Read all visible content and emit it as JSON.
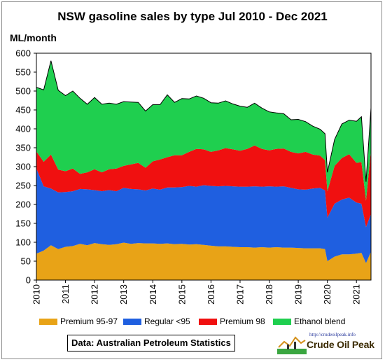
{
  "chart_data": {
    "type": "area",
    "stacked": true,
    "title": "NSW gasoline sales by type Jul 2010 - Dec 2021",
    "ylabel": "ML/month",
    "xlabel": "",
    "ylim": [
      0,
      600
    ],
    "yticks": [
      0,
      50,
      100,
      150,
      200,
      250,
      300,
      350,
      400,
      450,
      500,
      550,
      600
    ],
    "xlim": [
      2010,
      2021.5
    ],
    "xticks": [
      "2010",
      "2011",
      "2012",
      "2013",
      "2014",
      "2015",
      "2016",
      "2017",
      "2018",
      "2019",
      "2020",
      "2021"
    ],
    "grid": false,
    "legend_position": "bottom",
    "x": [
      2010.0,
      2010.25,
      2010.5,
      2010.75,
      2011.0,
      2011.25,
      2011.5,
      2011.75,
      2012.0,
      2012.25,
      2012.5,
      2012.75,
      2013.0,
      2013.25,
      2013.5,
      2013.75,
      2014.0,
      2014.25,
      2014.5,
      2014.75,
      2015.0,
      2015.25,
      2015.5,
      2015.75,
      2016.0,
      2016.25,
      2016.5,
      2016.75,
      2017.0,
      2017.25,
      2017.5,
      2017.75,
      2018.0,
      2018.25,
      2018.5,
      2018.75,
      2019.0,
      2019.25,
      2019.5,
      2019.75,
      2019.92,
      2020.0,
      2020.25,
      2020.5,
      2020.75,
      2021.0,
      2021.17,
      2021.33,
      2021.5
    ],
    "series": [
      {
        "name": "Premium 95-97",
        "color": "#e8a317",
        "values": [
          70,
          78,
          92,
          82,
          88,
          90,
          96,
          92,
          98,
          95,
          93,
          95,
          99,
          96,
          98,
          97,
          97,
          96,
          97,
          95,
          96,
          94,
          95,
          93,
          91,
          89,
          89,
          88,
          87,
          87,
          86,
          87,
          86,
          87,
          86,
          86,
          85,
          84,
          84,
          84,
          82,
          50,
          62,
          68,
          68,
          70,
          72,
          45,
          75
        ]
      },
      {
        "name": "Regular <95",
        "color": "#1f5fe0",
        "values": [
          225,
          170,
          150,
          150,
          145,
          145,
          145,
          148,
          140,
          140,
          145,
          140,
          145,
          145,
          142,
          140,
          145,
          143,
          148,
          150,
          150,
          155,
          152,
          158,
          158,
          159,
          160,
          160,
          160,
          160,
          162,
          160,
          162,
          160,
          162,
          158,
          155,
          155,
          158,
          160,
          155,
          115,
          140,
          145,
          150,
          135,
          130,
          95,
          100
        ]
      },
      {
        "name": "Premium 98",
        "color": "#f01010",
        "values": [
          45,
          65,
          90,
          60,
          55,
          60,
          40,
          45,
          55,
          50,
          55,
          60,
          58,
          65,
          70,
          60,
          72,
          80,
          80,
          85,
          84,
          90,
          100,
          95,
          90,
          95,
          100,
          98,
          95,
          100,
          108,
          100,
          95,
          100,
          100,
          95,
          95,
          100,
          90,
          85,
          80,
          70,
          100,
          110,
          115,
          105,
          110,
          70,
          170
        ]
      },
      {
        "name": "Ethanol blend",
        "color": "#1fcf4f",
        "values": [
          170,
          190,
          248,
          210,
          200,
          205,
          200,
          180,
          190,
          180,
          175,
          170,
          170,
          165,
          160,
          150,
          150,
          145,
          165,
          140,
          150,
          140,
          140,
          135,
          130,
          125,
          125,
          120,
          118,
          110,
          112,
          108,
          102,
          95,
          92,
          85,
          90,
          80,
          75,
          70,
          70,
          50,
          70,
          90,
          90,
          110,
          120,
          50,
          110
        ]
      }
    ]
  },
  "source": "Data: Australian Petroleum Statistics",
  "logo": {
    "url": "http://crudeoilpeak.info",
    "name": "Crude Oil Peak"
  }
}
